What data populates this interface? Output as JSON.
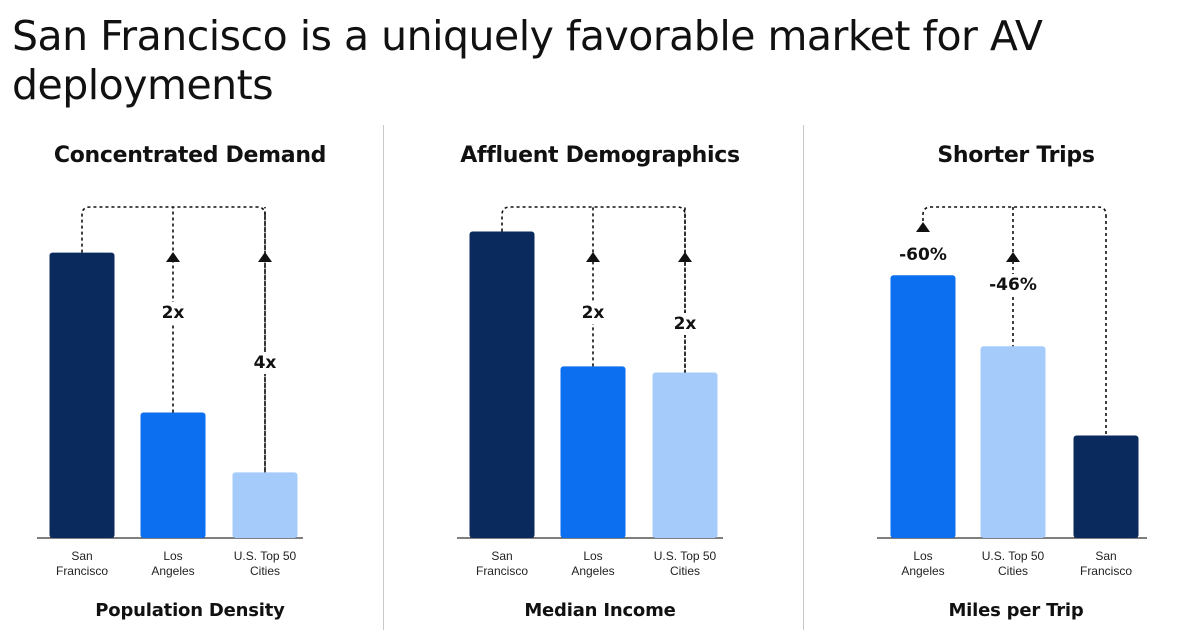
{
  "title": "San Francisco is a uniquely favorable market for AV deployments",
  "colors": {
    "navy": "#0a2a5e",
    "blue": "#0b6ff0",
    "light_blue": "#a5cbfa",
    "divider": "#c8c8c8"
  },
  "chart_data": [
    {
      "type": "bar",
      "title": "Concentrated Demand",
      "xlabel": "Population Density",
      "categories": [
        "San Francisco",
        "Los Angeles",
        "U.S. Top 50 Cities"
      ],
      "category_lines": [
        [
          "San",
          "Francisco"
        ],
        [
          "Los",
          "Angeles"
        ],
        [
          "U.S. Top 50",
          "Cities"
        ]
      ],
      "values": [
        100,
        44,
        23
      ],
      "colors": [
        "#0a2a5e",
        "#0b6ff0",
        "#a5cbfa"
      ],
      "annotations": [
        {
          "category": "Los Angeles",
          "label": "2x"
        },
        {
          "category": "U.S. Top 50 Cities",
          "label": "4x"
        }
      ],
      "ylim": [
        0,
        116
      ]
    },
    {
      "type": "bar",
      "title": "Affluent Demographics",
      "xlabel": "Median Income",
      "categories": [
        "San Francisco",
        "Los Angeles",
        "U.S. Top 50 Cities"
      ],
      "category_lines": [
        [
          "San",
          "Francisco"
        ],
        [
          "Los",
          "Angeles"
        ],
        [
          "U.S. Top 50",
          "Cities"
        ]
      ],
      "values": [
        100,
        56,
        54
      ],
      "colors": [
        "#0a2a5e",
        "#0b6ff0",
        "#a5cbfa"
      ],
      "annotations": [
        {
          "category": "Los Angeles",
          "label": "2x"
        },
        {
          "category": "U.S. Top 50 Cities",
          "label": "2x"
        }
      ],
      "ylim": [
        0,
        108
      ]
    },
    {
      "type": "bar",
      "title": "Shorter Trips",
      "xlabel": "Miles per Trip",
      "categories": [
        "Los Angeles",
        "U.S. Top 50 Cities",
        "San Francisco"
      ],
      "category_lines": [
        [
          "Los",
          "Angeles"
        ],
        [
          "U.S. Top 50",
          "Cities"
        ],
        [
          "San",
          "Francisco"
        ]
      ],
      "values": [
        100,
        73,
        39
      ],
      "colors": [
        "#0b6ff0",
        "#a5cbfa",
        "#0a2a5e"
      ],
      "annotations": [
        {
          "category": "Los Angeles",
          "label": "-60%"
        },
        {
          "category": "U.S. Top 50 Cities",
          "label": "-46%"
        }
      ],
      "ylim": [
        0,
        126
      ]
    }
  ]
}
